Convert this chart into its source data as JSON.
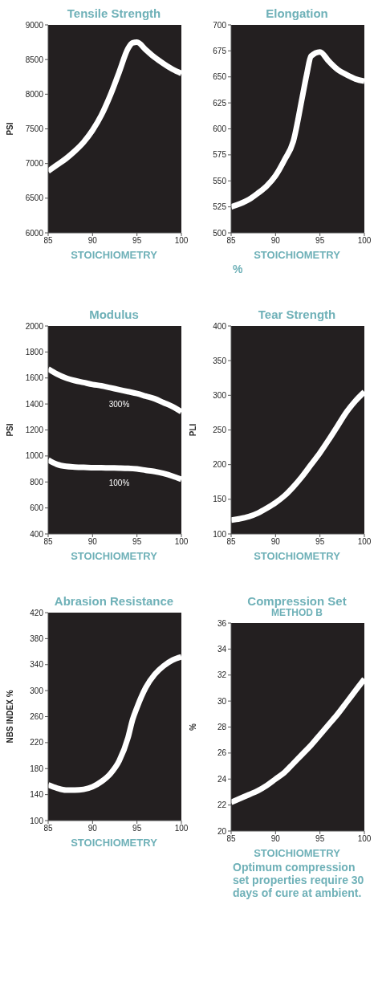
{
  "chart_data": [
    {
      "type": "line",
      "title": "Tensile Strength",
      "xlabel": "STOICHIOMETRY",
      "ylabel": "PSI",
      "x": [
        85,
        86,
        87,
        88,
        89,
        90,
        91,
        92,
        93,
        94,
        94.5,
        95,
        96,
        97,
        98,
        99,
        100
      ],
      "xlim": [
        85,
        100
      ],
      "xticks": [
        85,
        90,
        95,
        100
      ],
      "ylim": [
        6000,
        9000
      ],
      "yticks": [
        6000,
        6500,
        7000,
        7500,
        8000,
        8500,
        9000
      ],
      "series": [
        {
          "color": "#ffffff",
          "values": [
            6890,
            6980,
            7070,
            7180,
            7310,
            7480,
            7700,
            7985,
            8320,
            8660,
            8740,
            8750,
            8640,
            8530,
            8440,
            8360,
            8300
          ]
        }
      ]
    },
    {
      "type": "line",
      "title": "Elongation",
      "xlabel": "STOICHIOMETRY",
      "x": [
        85,
        86,
        87,
        88,
        89,
        90,
        91,
        92,
        93,
        93.5,
        94,
        95,
        96,
        97,
        98,
        99,
        100
      ],
      "xlim": [
        85,
        100
      ],
      "xticks": [
        85,
        90,
        95,
        100
      ],
      "ylim": [
        500,
        700
      ],
      "yticks": [
        500,
        525,
        550,
        575,
        600,
        625,
        650,
        675,
        700
      ],
      "annotations": [
        "%"
      ],
      "series": [
        {
          "color": "#ffffff",
          "values": [
            525,
            528,
            532,
            538,
            545,
            555,
            570,
            588,
            630,
            652,
            670,
            674,
            665,
            657,
            652,
            648,
            646
          ]
        }
      ]
    },
    {
      "type": "line",
      "title": "Modulus",
      "xlabel": "STOICHIOMETRY",
      "ylabel": "PSI",
      "x": [
        85,
        86,
        87,
        88,
        89,
        90,
        91,
        92,
        93,
        94,
        95,
        96,
        97,
        98,
        99,
        100
      ],
      "xlim": [
        85,
        100
      ],
      "xticks": [
        85,
        90,
        95,
        100
      ],
      "ylim": [
        400,
        2000
      ],
      "yticks": [
        400,
        600,
        800,
        1000,
        1200,
        1400,
        1600,
        1800,
        2000
      ],
      "series": [
        {
          "name": "300%",
          "color": "#ffffff",
          "values": [
            1670,
            1630,
            1600,
            1580,
            1565,
            1550,
            1540,
            1525,
            1510,
            1495,
            1480,
            1460,
            1440,
            1410,
            1380,
            1340
          ]
        },
        {
          "name": "100%",
          "color": "#ffffff",
          "values": [
            970,
            935,
            920,
            915,
            912,
            910,
            909,
            908,
            907,
            905,
            900,
            890,
            880,
            865,
            845,
            820
          ]
        }
      ]
    },
    {
      "type": "line",
      "title": "Tear Strength",
      "xlabel": "STOICHIOMETRY",
      "ylabel": "PLI",
      "x": [
        85,
        86,
        87,
        88,
        89,
        90,
        91,
        92,
        93,
        94,
        95,
        96,
        97,
        98,
        99,
        100
      ],
      "xlim": [
        85,
        100
      ],
      "xticks": [
        85,
        90,
        95,
        100
      ],
      "ylim": [
        100,
        400
      ],
      "yticks": [
        100,
        150,
        200,
        250,
        300,
        350,
        400
      ],
      "series": [
        {
          "color": "#ffffff",
          "values": [
            120,
            122,
            125,
            130,
            137,
            145,
            155,
            168,
            183,
            200,
            217,
            236,
            256,
            276,
            292,
            305
          ]
        }
      ]
    },
    {
      "type": "line",
      "title": "Abrasion Resistance",
      "xlabel": "STOICHIOMETRY",
      "ylabel": "NBS INDEX %",
      "x": [
        85,
        86,
        87,
        88,
        89,
        90,
        91,
        92,
        93,
        94,
        94.5,
        95,
        96,
        97,
        98,
        99,
        100
      ],
      "xlim": [
        85,
        100
      ],
      "xticks": [
        85,
        90,
        95,
        100
      ],
      "ylim": [
        100,
        420
      ],
      "yticks": [
        100,
        140,
        180,
        220,
        260,
        300,
        340,
        380,
        420
      ],
      "series": [
        {
          "color": "#ffffff",
          "values": [
            155,
            150,
            147,
            147,
            148,
            152,
            160,
            172,
            192,
            228,
            255,
            274,
            305,
            325,
            338,
            347,
            352
          ]
        }
      ]
    },
    {
      "type": "line",
      "title": "Compression Set",
      "subtitle": "METHOD B",
      "xlabel": "STOICHIOMETRY",
      "ylabel": "%",
      "x": [
        85,
        86,
        87,
        88,
        89,
        90,
        91,
        92,
        93,
        94,
        95,
        96,
        97,
        98,
        99,
        100
      ],
      "xlim": [
        85,
        100
      ],
      "xticks": [
        85,
        90,
        95,
        100
      ],
      "ylim": [
        20,
        36
      ],
      "yticks": [
        20,
        22,
        24,
        26,
        28,
        30,
        32,
        34,
        36
      ],
      "annotations": [
        "Optimum compression set properties require 30 days of cure at ambient."
      ],
      "series": [
        {
          "color": "#ffffff",
          "values": [
            22.2,
            22.5,
            22.8,
            23.1,
            23.5,
            24,
            24.5,
            25.2,
            25.9,
            26.6,
            27.4,
            28.2,
            29,
            29.9,
            30.8,
            31.7
          ]
        }
      ]
    }
  ]
}
